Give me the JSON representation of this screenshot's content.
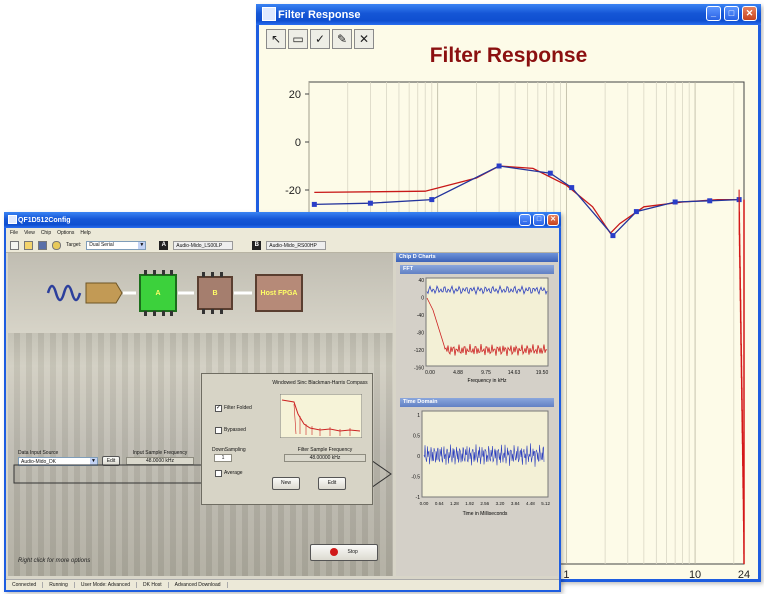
{
  "filter_window": {
    "title": "Filter Response",
    "chart_title": "Filter Response",
    "tools": [
      "pointer-tool",
      "select-box-tool",
      "check-tool",
      "draw-tool",
      "close-tool"
    ],
    "y_ticks": [
      "20",
      "0",
      "-20"
    ],
    "x_ticks": [
      "1",
      "10",
      "24"
    ]
  },
  "qf_window": {
    "title": "QF1D512Config",
    "menu": [
      "File",
      "View",
      "Chip",
      "Options",
      "Help"
    ],
    "target_label": "Target:",
    "target_value": "Dual Serial",
    "chip_a": {
      "tag": "A",
      "name": "Audio-Mido_LS00LP"
    },
    "chip_b": {
      "tag": "B",
      "name": "Audio-Mido_RS00HP"
    },
    "blocks": {
      "a": "A",
      "b": "B",
      "host": "Host FPGA"
    },
    "data_input_source_label": "Data Input Source",
    "data_input_source_value": "Audio-Mido_DK",
    "edit_label": "Edit",
    "input_sample_freq_label": "Input Sample Frequency",
    "input_sample_freq_value": "48.0000 kHz",
    "dialog": {
      "chart_title": "Windowed Sinc Blackman-Harris Compass",
      "filter_folded": "Filter Folded",
      "bypassed": "Bypassed",
      "down_sampling_label": "DownSampling",
      "down_sampling_value": "1",
      "filter_sample_freq_label": "Filter Sample Frequency",
      "filter_sample_freq_value": "48.00000 kHz",
      "average": "Average",
      "new_button": "New",
      "edit_button": "Edit"
    },
    "hint": "Right click for more options",
    "stop_button": "Stop",
    "charts_pane_title": "Chip D Charts",
    "fft": {
      "title": "FFT",
      "y_ticks": [
        "40",
        "0",
        "-40",
        "-80",
        "-120",
        "-160"
      ],
      "x_ticks": [
        "0.00",
        "4.88",
        "9.75",
        "14.63",
        "19.50"
      ],
      "xlabel": "Frequency in kHz"
    },
    "time": {
      "title": "Time Domain",
      "y_ticks": [
        "1",
        "0.5",
        "0",
        "-0.5",
        "-1"
      ],
      "x_ticks": [
        "0.00",
        "0.64",
        "1.28",
        "1.92",
        "2.56",
        "3.20",
        "3.84",
        "4.48",
        "5.12"
      ],
      "xlabel": "Time in Milliseconds"
    },
    "status": [
      "Connected",
      "Running",
      "User Mode: Advanced",
      "DK Host",
      "Advanced Download"
    ]
  }
}
